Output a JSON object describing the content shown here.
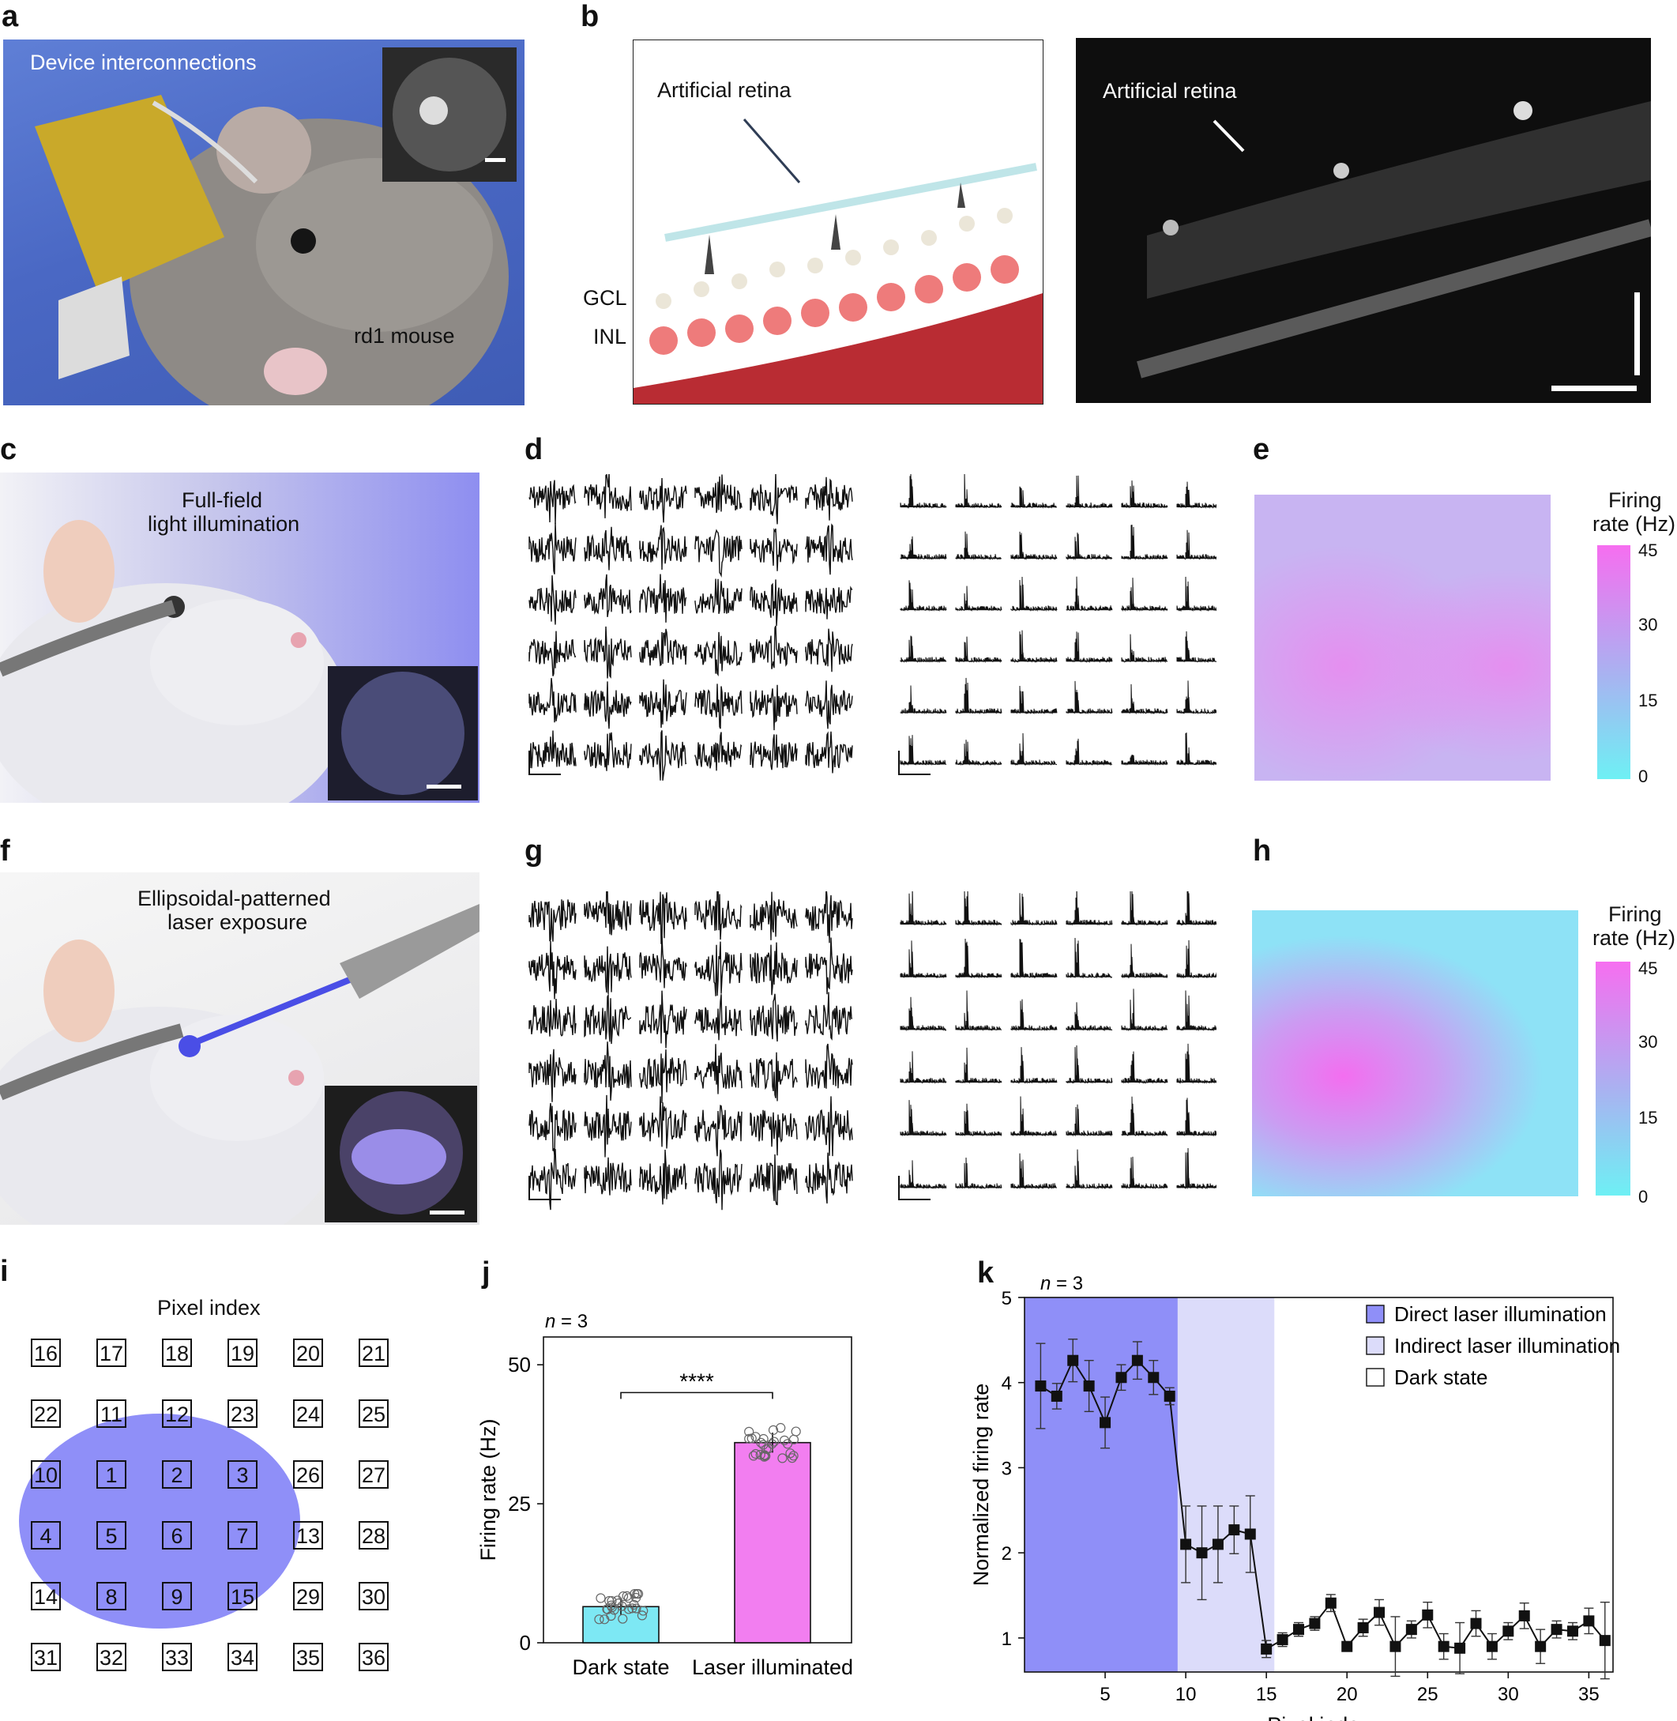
{
  "panels": {
    "a": {
      "label": "a",
      "device_text": "Device interconnections",
      "mouse_text": "rd1 mouse"
    },
    "b": {
      "label": "b",
      "schematic_label": "Artificial retina",
      "gcl": "GCL",
      "inl": "INL",
      "oct_label": "Artificial retina"
    },
    "c": {
      "label": "c",
      "line1": "Full-field",
      "line2": "light illumination"
    },
    "d": {
      "label": "d"
    },
    "e": {
      "label": "e",
      "cb_title1": "Firing",
      "cb_title2": "rate (Hz)",
      "ticks": [
        "45",
        "30",
        "15",
        "0"
      ]
    },
    "f": {
      "label": "f",
      "line1": "Ellipsoidal-patterned",
      "line2": "laser exposure"
    },
    "g": {
      "label": "g"
    },
    "h": {
      "label": "h",
      "cb_title1": "Firing",
      "cb_title2": "rate (Hz)",
      "ticks": [
        "45",
        "30",
        "15",
        "0"
      ]
    },
    "i": {
      "label": "i",
      "title": "Pixel index",
      "grid": [
        [
          16,
          17,
          18,
          19,
          20,
          21
        ],
        [
          22,
          11,
          12,
          23,
          24,
          25
        ],
        [
          10,
          1,
          2,
          3,
          26,
          27
        ],
        [
          4,
          5,
          6,
          7,
          13,
          28
        ],
        [
          14,
          8,
          9,
          15,
          29,
          30
        ],
        [
          31,
          32,
          33,
          34,
          35,
          36
        ]
      ]
    },
    "j": {
      "label": "j",
      "n_label": "n",
      "n_value": " = 3",
      "ylabel": "Firing rate (Hz)",
      "yticks": [
        "50",
        "25",
        "0"
      ],
      "categories": [
        "Dark state",
        "Laser illuminated"
      ],
      "significance": "****"
    },
    "k": {
      "label": "k",
      "n_label": "n",
      "n_value": " = 3",
      "ylabel": "Normalized firing rate",
      "xlabel": "Pixel index",
      "yticks": [
        "5",
        "4",
        "3",
        "2",
        "1"
      ],
      "xticks": [
        "5",
        "10",
        "15",
        "20",
        "25",
        "30",
        "35"
      ],
      "legend": [
        "Direct laser illumination",
        "Indirect laser illumination",
        "Dark state"
      ]
    }
  },
  "colors": {
    "direct": "#8f8ff8",
    "indirect": "#dcdcfa",
    "dark_bar": "#7de8f4",
    "laser_bar": "#f27ef0",
    "ellipse": "#8f8ff8"
  },
  "chart_data": [
    {
      "type": "bar",
      "title": "",
      "categories": [
        "Dark state",
        "Laser illuminated"
      ],
      "values": [
        6.5,
        36
      ],
      "errors": [
        1.5,
        1.8
      ],
      "ylabel": "Firing rate (Hz)",
      "ylim": [
        0,
        55
      ],
      "annotation": "****",
      "n": "n = 3"
    },
    {
      "type": "line",
      "title": "",
      "xlabel": "Pixel index",
      "ylabel": "Normalized firing rate",
      "xlim": [
        0,
        36.5
      ],
      "ylim": [
        0.6,
        5
      ],
      "x": [
        1,
        2,
        3,
        4,
        5,
        6,
        7,
        8,
        9,
        10,
        11,
        12,
        13,
        14,
        15,
        16,
        17,
        18,
        19,
        20,
        21,
        22,
        23,
        24,
        25,
        26,
        27,
        28,
        29,
        30,
        31,
        32,
        33,
        34,
        35,
        36
      ],
      "values": [
        3.96,
        3.84,
        4.26,
        3.96,
        3.53,
        4.06,
        4.26,
        4.06,
        3.84,
        2.1,
        2.0,
        2.1,
        2.27,
        2.22,
        0.87,
        0.98,
        1.1,
        1.17,
        1.41,
        0.9,
        1.12,
        1.3,
        0.9,
        1.1,
        1.27,
        0.9,
        0.88,
        1.17,
        0.9,
        1.08,
        1.26,
        0.9,
        1.1,
        1.08,
        1.2,
        0.97
      ],
      "errors": [
        0.5,
        0.15,
        0.25,
        0.3,
        0.3,
        0.15,
        0.22,
        0.2,
        0.1,
        0.45,
        0.55,
        0.45,
        0.28,
        0.45,
        0.1,
        0.08,
        0.08,
        0.08,
        0.1,
        0.05,
        0.1,
        0.15,
        0.35,
        0.1,
        0.15,
        0.15,
        0.3,
        0.15,
        0.15,
        0.1,
        0.15,
        0.2,
        0.1,
        0.1,
        0.15,
        0.45
      ],
      "regions": [
        {
          "name": "Direct laser illumination",
          "x": [
            0,
            9.5
          ]
        },
        {
          "name": "Indirect laser illumination",
          "x": [
            9.5,
            15.5
          ]
        },
        {
          "name": "Dark state",
          "x": [
            15.5,
            36.5
          ]
        }
      ],
      "n": "n = 3"
    }
  ]
}
